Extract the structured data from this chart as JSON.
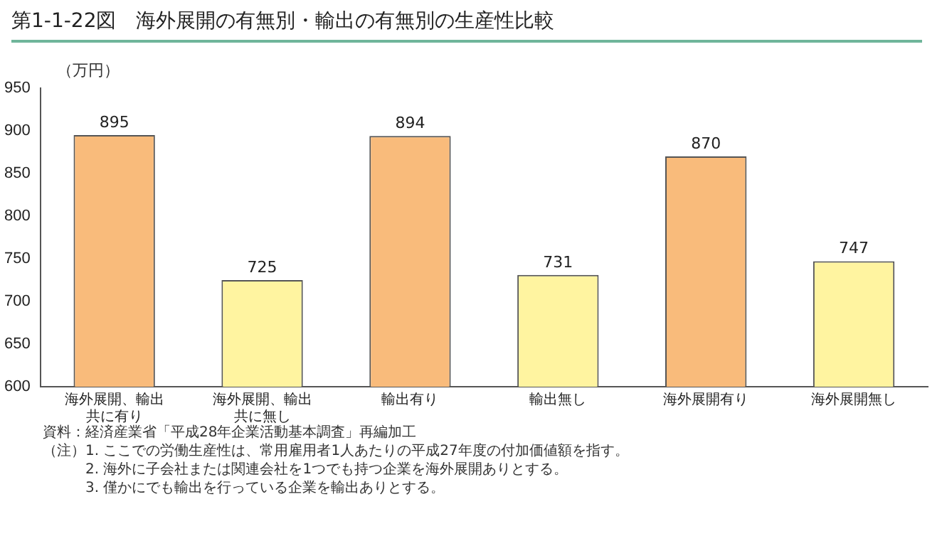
{
  "chart_data": {
    "type": "bar",
    "title": "第1-1-22図　海外展開の有無別・輸出の有無別の生産性比較",
    "ylabel": "（万円）",
    "categories": [
      "海外展開、輸出共に有り",
      "海外展開、輸出共に無し",
      "輸出有り",
      "輸出無し",
      "海外展開有り",
      "海外展開無し"
    ],
    "values": [
      895,
      725,
      894,
      731,
      870,
      747
    ],
    "colors": [
      "#f9bb7b",
      "#fff4a0",
      "#f9bb7b",
      "#fff4a0",
      "#f9bb7b",
      "#fff4a0"
    ],
    "ylim": [
      600,
      950
    ],
    "yticks": [
      600,
      650,
      700,
      750,
      800,
      850,
      900,
      950
    ],
    "data_labels": true,
    "grid": false,
    "legend": false,
    "annotations": [
      "資料：経済産業省「平成28年企業活動基本調査」再編加工",
      "（注）1. ここでの労働生産性は、常用雇用者1人あたりの平成27年度の付加価値額を指す。",
      "　　　2. 海外に子会社または関連会社を1つでも持つ企業を海外展開ありとする。",
      "　　　3. 僅かにでも輸出を行っている企業を輸出ありとする。"
    ]
  }
}
